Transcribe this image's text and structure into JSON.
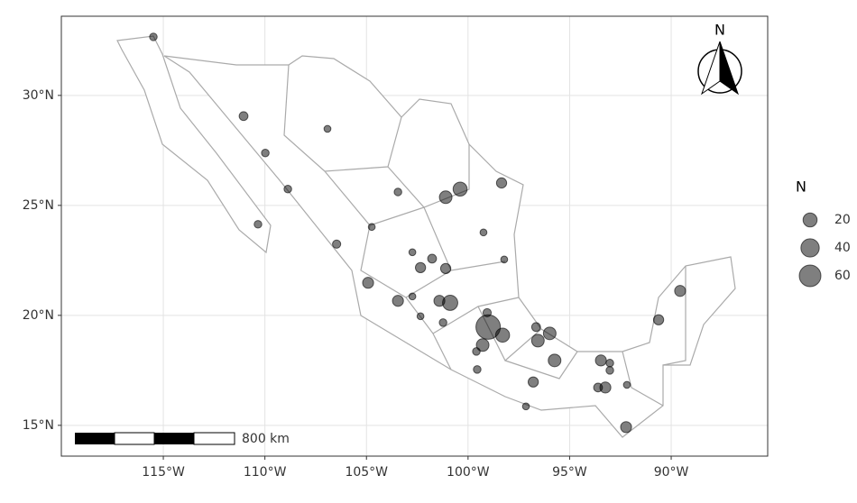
{
  "chart_data": {
    "type": "bubble_map",
    "x": [
      -115.49,
      -111.05,
      -109.98,
      -106.92,
      -108.87,
      -110.34,
      -106.47,
      -103.45,
      -104.74,
      -101.1,
      -100.39,
      -98.35,
      -99.24,
      -98.22,
      -102.74,
      -101.77,
      -102.34,
      -101.1,
      -104.92,
      -103.45,
      -102.74,
      -101.41,
      -100.88,
      -102.34,
      -101.23,
      -99.06,
      -99.01,
      -99.28,
      -98.3,
      -99.59,
      -96.65,
      -96.56,
      -95.98,
      -95.74,
      -99.55,
      -96.79,
      -97.15,
      -93.46,
      -93.02,
      -93.6,
      -93.24,
      -92.22,
      -90.62,
      -89.56,
      -92.18,
      -93.02
    ],
    "y": [
      32.66,
      29.06,
      27.38,
      28.48,
      25.74,
      24.14,
      23.24,
      25.61,
      24.02,
      25.37,
      25.74,
      26.02,
      23.77,
      22.54,
      22.87,
      22.58,
      22.17,
      22.13,
      21.48,
      20.66,
      20.86,
      20.66,
      20.57,
      19.96,
      19.67,
      20.12,
      19.47,
      18.65,
      19.1,
      18.36,
      19.47,
      18.85,
      19.18,
      17.95,
      17.54,
      16.97,
      15.86,
      17.95,
      17.83,
      16.72,
      16.72,
      14.92,
      19.8,
      21.11,
      16.84,
      17.5
    ],
    "sizes": [
      3,
      5,
      3,
      2,
      3,
      3,
      4,
      3,
      2,
      15,
      20,
      8,
      2,
      2,
      2,
      5,
      8,
      8,
      10,
      10,
      2,
      10,
      25,
      2,
      3,
      4,
      80,
      15,
      20,
      3,
      5,
      15,
      15,
      15,
      3,
      8,
      2,
      10,
      3,
      5,
      10,
      10,
      8,
      10,
      2,
      3
    ],
    "color": "#000000",
    "alpha": 0.5,
    "xlim": [
      -120.02,
      -85.25
    ],
    "ylim": [
      13.6,
      33.6
    ],
    "xticks": [
      {
        "value": -115,
        "label": "115°W"
      },
      {
        "value": -110,
        "label": "110°W"
      },
      {
        "value": -105,
        "label": "105°W"
      },
      {
        "value": -100,
        "label": "100°W"
      },
      {
        "value": -95,
        "label": "95°W"
      },
      {
        "value": -90,
        "label": "90°W"
      }
    ],
    "yticks": [
      {
        "value": 15,
        "label": "15°N"
      },
      {
        "value": 20,
        "label": "20°N"
      },
      {
        "value": 25,
        "label": "25°N"
      },
      {
        "value": 30,
        "label": "30°N"
      }
    ],
    "grid": true,
    "size_legend": {
      "title": "N",
      "values": [
        20,
        40,
        60
      ]
    },
    "scale_bar_label": "800 km",
    "north_arrow_label": "N"
  }
}
